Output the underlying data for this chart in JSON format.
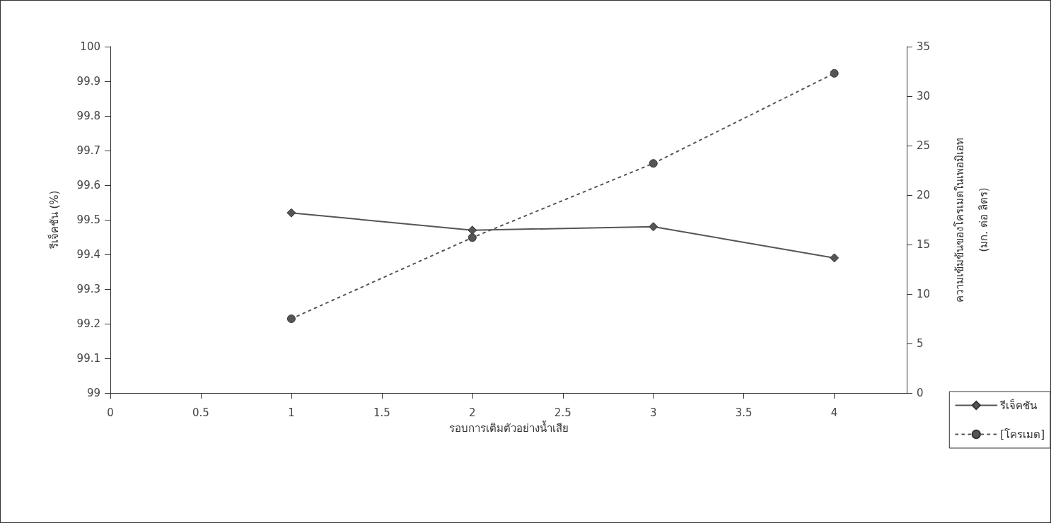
{
  "chart_data": {
    "type": "line",
    "xlabel": "รอบการเติมตัวอย่างน้ำเสีย",
    "ylabel": "รีเจ็คชัน (%)",
    "y2label": "ความเข้มข้นของโครเมตในเพอมิเอท\n(มก. ต่อ ลิตร)",
    "x": [
      1,
      2,
      3,
      4
    ],
    "series": [
      {
        "name": "รีเจ็คชัน",
        "color": "#555555",
        "values": [
          99.52,
          99.47,
          99.48,
          99.39
        ],
        "marker": "diamond",
        "line_style": "solid"
      },
      {
        "name": "[โครเมต]",
        "color": "#555555",
        "values": [
          7.5,
          15.7,
          23.2,
          32.3
        ],
        "marker": "circle",
        "line_style": "dotted",
        "axis": "y2"
      }
    ],
    "xlim": [
      0,
      4.4
    ],
    "xticks": [
      0,
      0.5,
      1,
      1.5,
      2,
      2.5,
      3,
      3.5,
      4
    ],
    "ylim": [
      99,
      100
    ],
    "yticks": [
      99,
      99.1,
      99.2,
      99.3,
      99.4,
      99.5,
      99.6,
      99.7,
      99.8,
      99.9,
      100
    ],
    "y2lim": [
      0,
      35
    ],
    "y2ticks": [
      0,
      5,
      10,
      15,
      20,
      25,
      30,
      35
    ],
    "grid": false,
    "legend": "bottom right"
  }
}
